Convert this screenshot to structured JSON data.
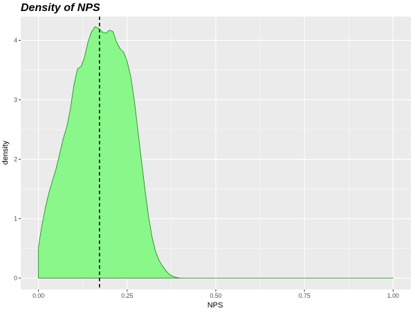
{
  "chart_data": {
    "type": "area",
    "title": "Density of NPS",
    "xlabel": "NPS",
    "ylabel": "density",
    "xlim": [
      -0.05,
      1.05
    ],
    "ylim": [
      -0.19,
      4.4
    ],
    "x_ticks": [
      0.0,
      0.25,
      0.5,
      0.75,
      1.0
    ],
    "x_tick_labels": [
      "0.00",
      "0.25",
      "0.50",
      "0.75",
      "1.00"
    ],
    "y_ticks": [
      0,
      1,
      2,
      3,
      4
    ],
    "y_tick_labels": [
      "0",
      "1",
      "2",
      "3",
      "4"
    ],
    "grid": true,
    "legend": "none",
    "series": [
      {
        "x": [
          0.0,
          0.0,
          0.005,
          0.01,
          0.02,
          0.03,
          0.04,
          0.05,
          0.06,
          0.07,
          0.08,
          0.09,
          0.1,
          0.11,
          0.12,
          0.13,
          0.14,
          0.15,
          0.16,
          0.17,
          0.18,
          0.19,
          0.2,
          0.21,
          0.22,
          0.23,
          0.24,
          0.25,
          0.26,
          0.27,
          0.28,
          0.29,
          0.3,
          0.31,
          0.32,
          0.33,
          0.34,
          0.35,
          0.36,
          0.37,
          0.38,
          0.39,
          0.4,
          0.41,
          0.45,
          0.5,
          0.6,
          0.7,
          0.8,
          0.9,
          1.0
        ],
        "y": [
          0.0,
          0.52,
          0.72,
          0.9,
          1.2,
          1.45,
          1.65,
          1.85,
          2.1,
          2.35,
          2.55,
          2.85,
          3.25,
          3.52,
          3.56,
          3.72,
          3.98,
          4.15,
          4.23,
          4.2,
          4.14,
          4.12,
          4.17,
          4.15,
          3.97,
          3.86,
          3.8,
          3.65,
          3.4,
          3.0,
          2.5,
          2.0,
          1.5,
          1.05,
          0.7,
          0.45,
          0.3,
          0.2,
          0.12,
          0.06,
          0.03,
          0.01,
          0.0,
          0.0,
          0.0,
          0.0,
          0.0,
          0.0,
          0.0,
          0.0,
          0.0
        ],
        "fill": "#8af78a",
        "line": "#1b7d1b"
      }
    ],
    "reference_line": {
      "orientation": "vertical",
      "x": 0.172,
      "style": "dashed",
      "color": "#000000"
    },
    "colors": {
      "panel_background": "#ebebeb",
      "gridline": "#ffffff",
      "area_fill": "#8af78a",
      "area_outline": "#1b7d1b",
      "reference_line": "#000000"
    }
  }
}
